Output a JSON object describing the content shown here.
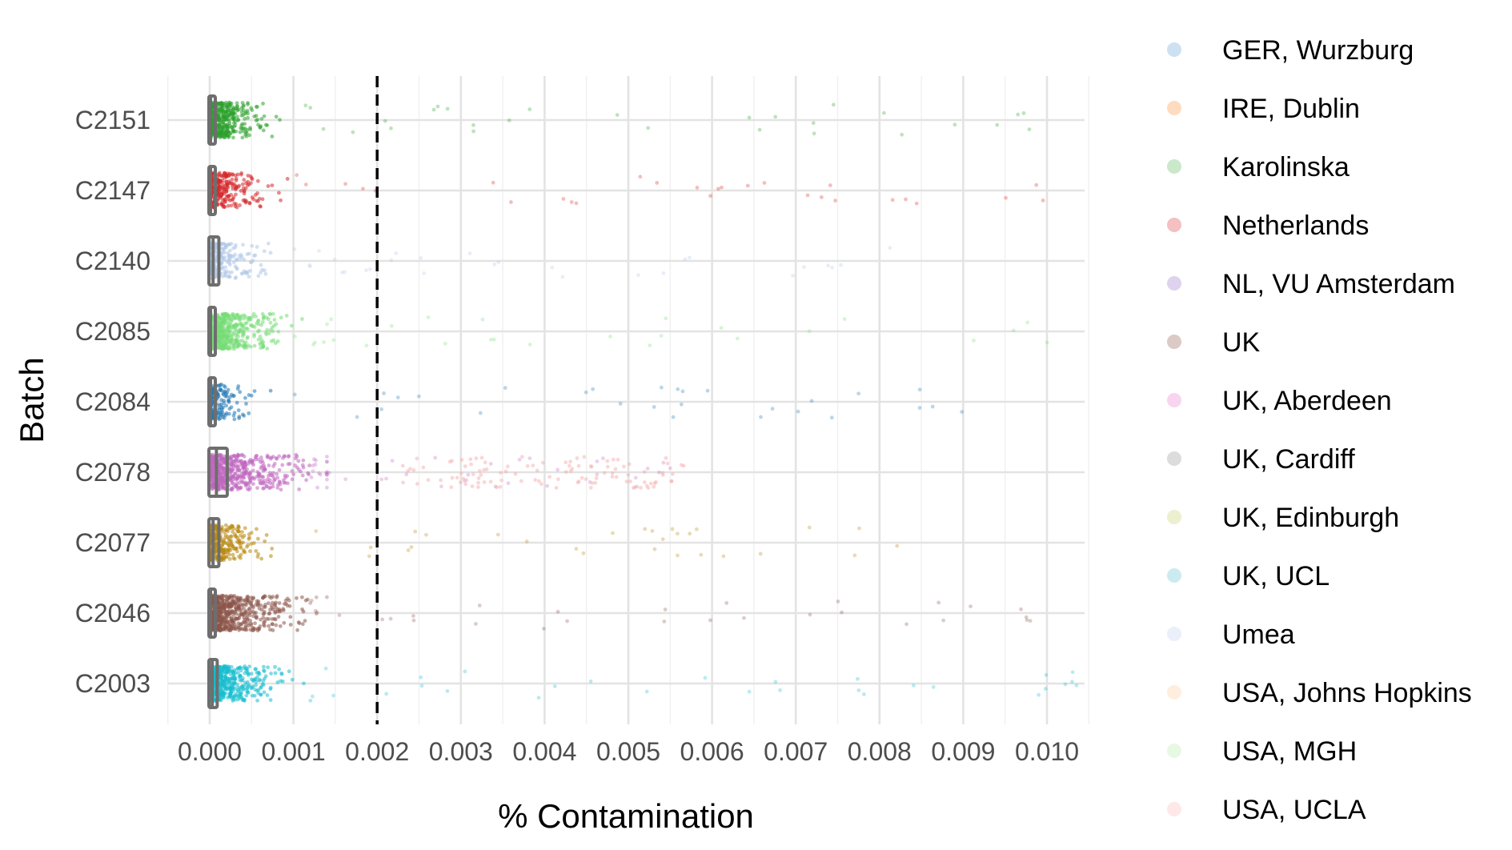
{
  "chart_data": {
    "type": "scatter",
    "subtype": "jittered strip plot with boxplots",
    "xlabel": "% Contamination",
    "ylabel": "Batch",
    "xlim": [
      -0.0005,
      0.0105
    ],
    "xticks": [
      "0.000",
      "0.001",
      "0.002",
      "0.003",
      "0.004",
      "0.005",
      "0.006",
      "0.007",
      "0.008",
      "0.009",
      "0.010"
    ],
    "xtick_values": [
      0,
      0.001,
      0.002,
      0.003,
      0.004,
      0.005,
      0.006,
      0.007,
      0.008,
      0.009,
      0.01
    ],
    "categories": [
      "C2151",
      "C2147",
      "C2140",
      "C2085",
      "C2084",
      "C2078",
      "C2077",
      "C2046",
      "C2003"
    ],
    "threshold_line": {
      "x": 0.002,
      "style": "dashed",
      "color": "#000000"
    },
    "grid": true,
    "legend_position": "right",
    "legend": [
      {
        "name": "GER, Wurzburg",
        "color": "#a6c8e6"
      },
      {
        "name": "IRE, Dublin",
        "color": "#ffc08c"
      },
      {
        "name": "Karolinska",
        "color": "#9ed69e"
      },
      {
        "name": "Netherlands",
        "color": "#eb8c8e"
      },
      {
        "name": "NL, VU Amsterdam",
        "color": "#c3aee0"
      },
      {
        "name": "UK",
        "color": "#bf9e98"
      },
      {
        "name": "UK, Aberdeen",
        "color": "#f2b2e0"
      },
      {
        "name": "UK, Cardiff",
        "color": "#bfbfbf"
      },
      {
        "name": "UK, Edinburgh",
        "color": "#dde4a8"
      },
      {
        "name": "UK, UCL",
        "color": "#a2dbe6"
      },
      {
        "name": "Umea",
        "color": "#d8e2f4"
      },
      {
        "name": "USA, Johns Hopkins",
        "color": "#ffe0c2"
      },
      {
        "name": "USA, MGH",
        "color": "#d4f4cc"
      },
      {
        "name": "USA, UCLA",
        "color": "#ffd6d6"
      }
    ],
    "series": [
      {
        "category": "C2151",
        "color": "#2ca02c",
        "box": [
          0.0,
          0.0,
          1e-05,
          3e-05,
          4e-05
        ],
        "n": 420,
        "median_spread": 0.0003,
        "max": 0.0104
      },
      {
        "category": "C2147",
        "color": "#d62728",
        "box": [
          0.0,
          0.0,
          1e-05,
          3e-05,
          4e-05
        ],
        "n": 260,
        "median_spread": 0.0003,
        "max": 0.01
      },
      {
        "category": "C2140",
        "color": "#aec7e8",
        "box": [
          0.0,
          0.0,
          4e-05,
          0.0001,
          0.00012
        ],
        "n": 220,
        "median_spread": 0.0003,
        "max": 0.0082
      },
      {
        "category": "C2085",
        "color": "#77dd77",
        "box": [
          0.0,
          0.0,
          1e-05,
          3e-05,
          5e-05
        ],
        "n": 520,
        "median_spread": 0.00035,
        "max": 0.0105
      },
      {
        "category": "C2084",
        "color": "#1f77b4",
        "box": [
          0.0,
          0.0,
          1e-05,
          4e-05,
          5e-05
        ],
        "n": 160,
        "median_spread": 0.00025,
        "max": 0.009
      },
      {
        "category": "C2078",
        "color": "#c066c0",
        "box": [
          0.0,
          0.0,
          8e-05,
          0.0002,
          0.00025
        ],
        "n": 560,
        "median_spread": 0.0006,
        "max": 0.0057
      },
      {
        "category": "C2077",
        "color": "#b8860b",
        "box": [
          0.0,
          0.0,
          4e-05,
          0.0001,
          0.00012
        ],
        "n": 280,
        "median_spread": 0.0003,
        "max": 0.0085
      },
      {
        "category": "C2046",
        "color": "#8c564b",
        "box": [
          0.0,
          0.0,
          1e-05,
          3e-05,
          4e-05
        ],
        "n": 600,
        "median_spread": 0.0005,
        "max": 0.0099
      },
      {
        "category": "C2003",
        "color": "#17becf",
        "box": [
          0.0,
          0.0,
          3e-05,
          8e-05,
          0.0001
        ],
        "n": 480,
        "median_spread": 0.0004,
        "max": 0.0104
      }
    ]
  }
}
